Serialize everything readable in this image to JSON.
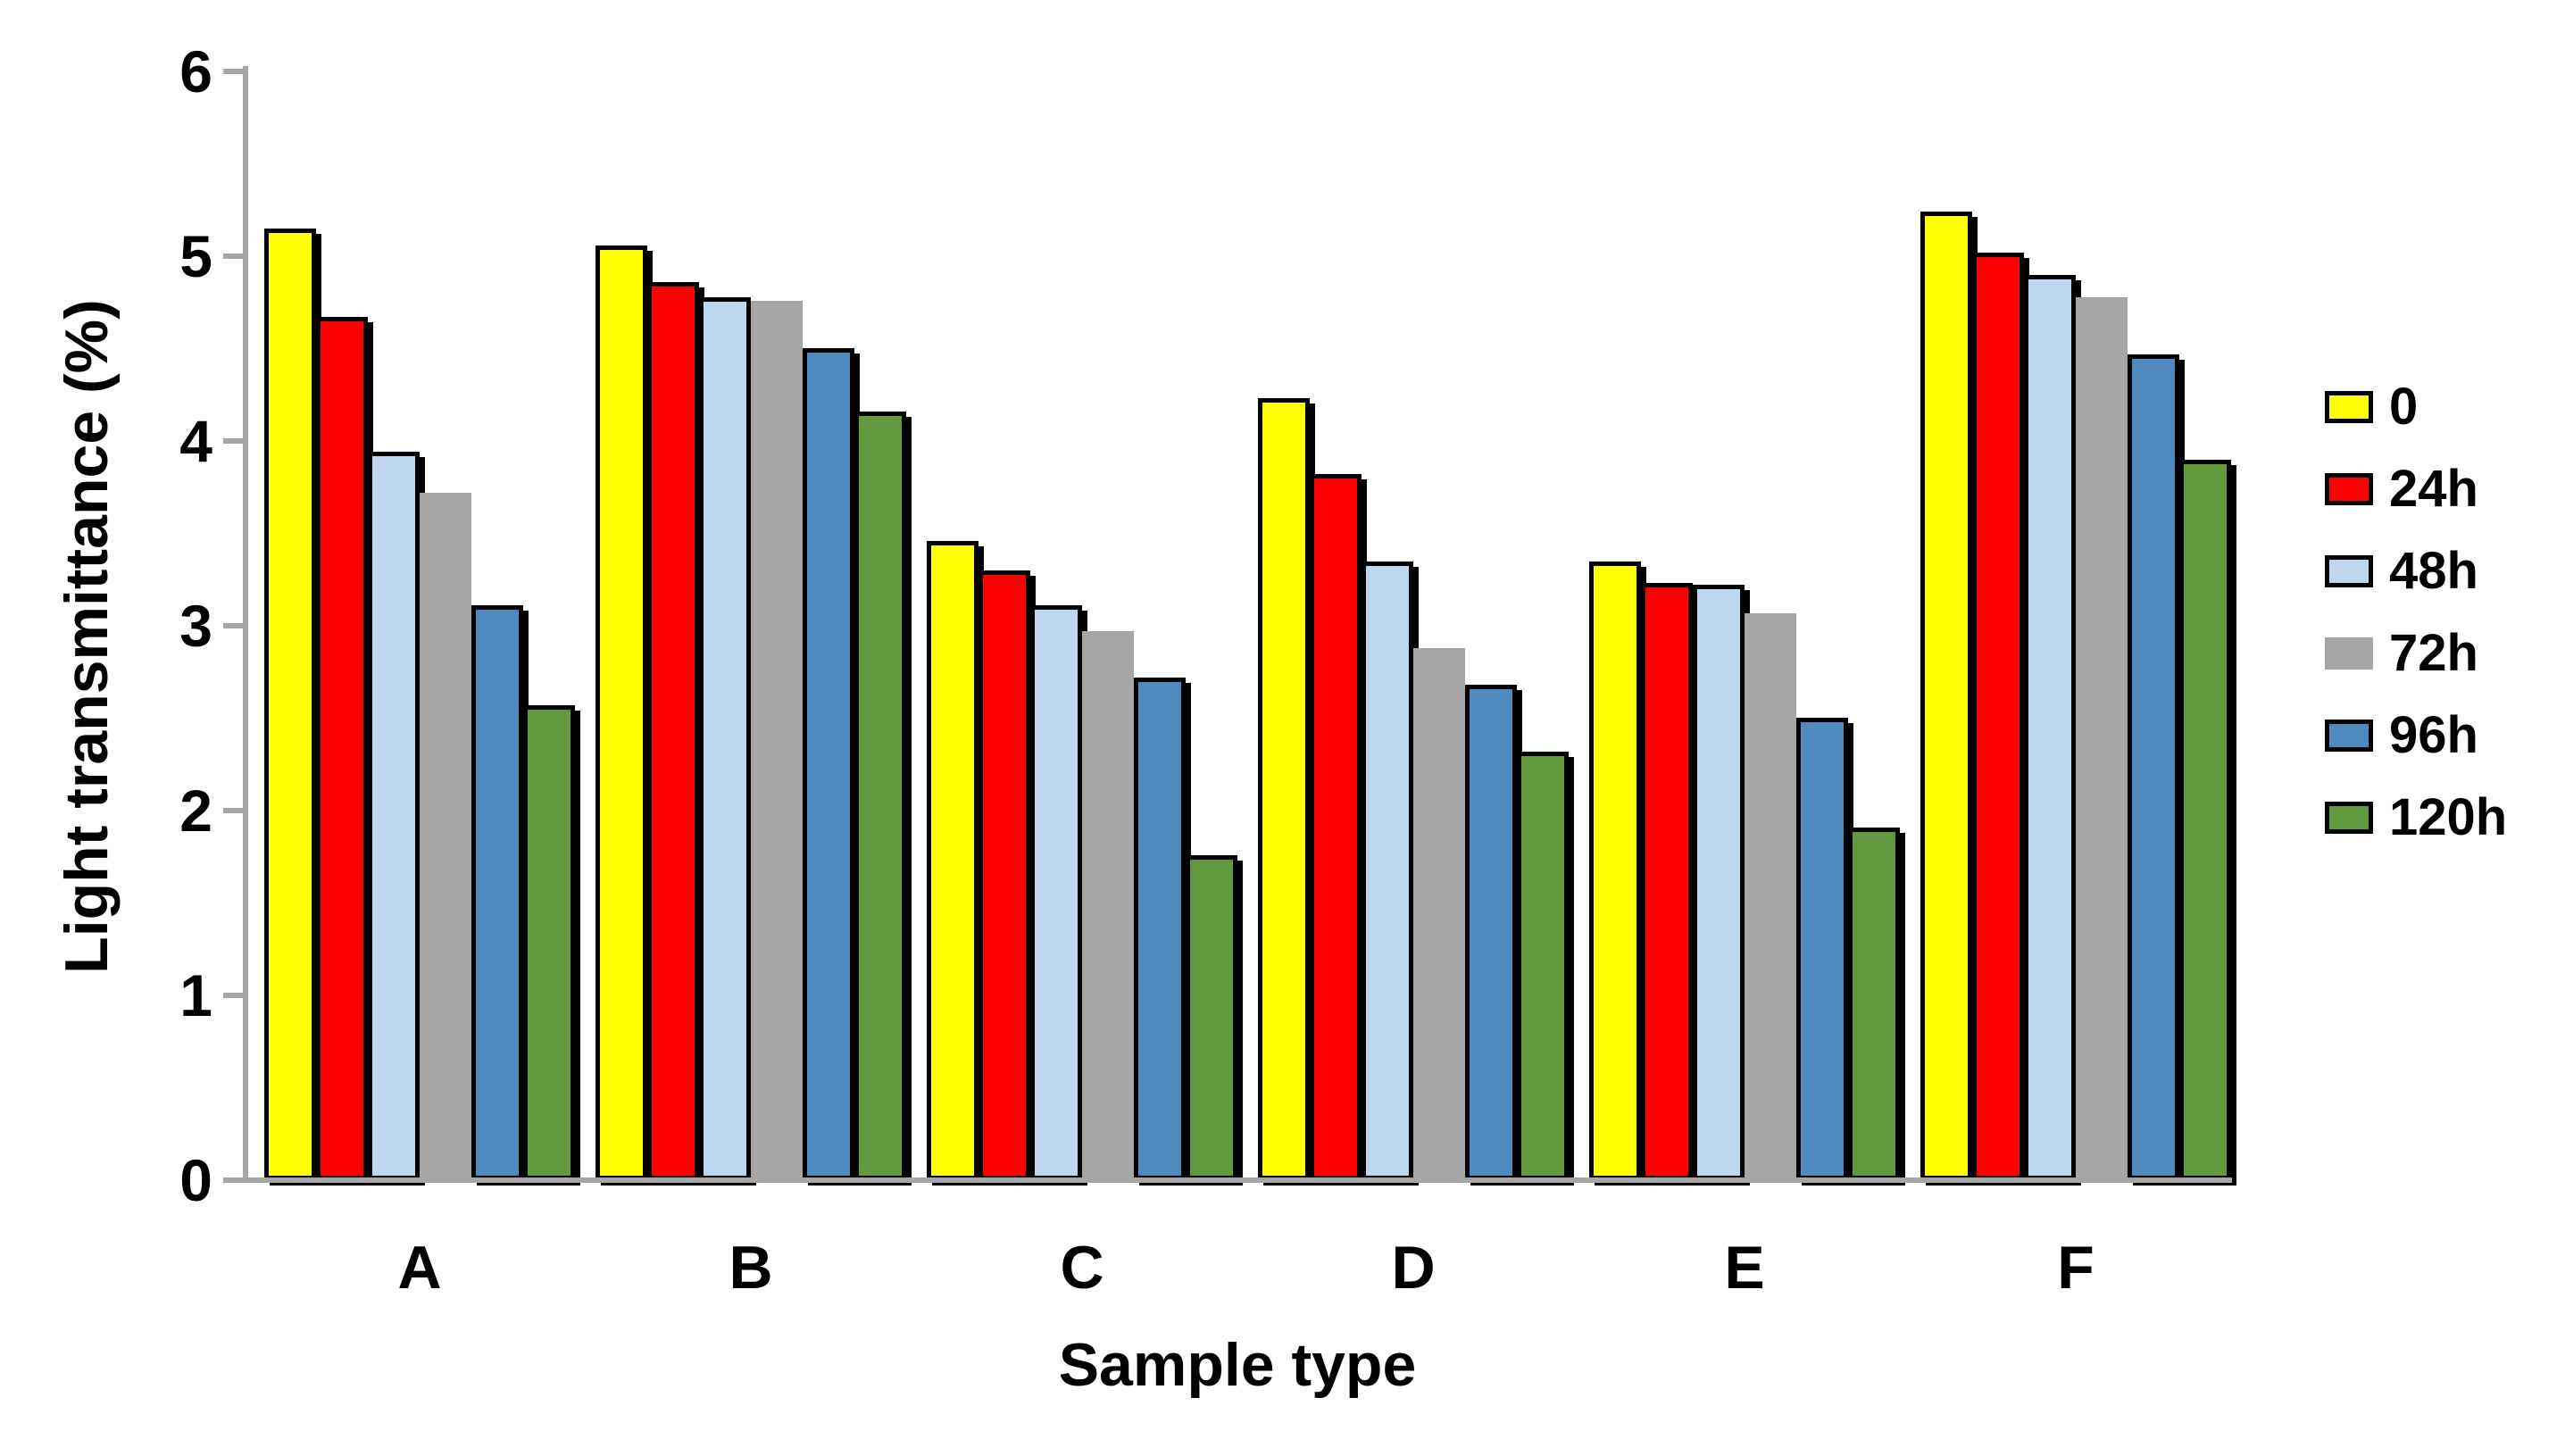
{
  "chart_data": {
    "type": "bar",
    "title": "",
    "xlabel": "Sample type",
    "ylabel": "Light transmittance (%)",
    "ylim": [
      0,
      6
    ],
    "yticks": [
      0,
      1,
      2,
      3,
      4,
      5,
      6
    ],
    "grid": false,
    "legend_position": "right",
    "categories": [
      "A",
      "B",
      "C",
      "D",
      "E",
      "F"
    ],
    "series": [
      {
        "name": "0",
        "color": "#FFFF00",
        "outlined": true,
        "values": [
          5.15,
          5.06,
          3.46,
          4.23,
          3.35,
          5.24
        ]
      },
      {
        "name": "24h",
        "color": "#FF0000",
        "outlined": true,
        "values": [
          4.67,
          4.86,
          3.3,
          3.82,
          3.23,
          5.02
        ]
      },
      {
        "name": "48h",
        "color": "#BDD7EE",
        "outlined": true,
        "values": [
          3.94,
          4.78,
          3.11,
          3.35,
          3.22,
          4.9
        ]
      },
      {
        "name": "72h",
        "color": "#A6A6A6",
        "outlined": false,
        "values": [
          3.72,
          4.76,
          2.97,
          2.88,
          3.07,
          4.78
        ]
      },
      {
        "name": "96h",
        "color": "#4F8ABE",
        "outlined": true,
        "values": [
          3.11,
          4.5,
          2.72,
          2.68,
          2.5,
          4.47
        ]
      },
      {
        "name": "120h",
        "color": "#61993F",
        "outlined": true,
        "values": [
          2.57,
          4.16,
          1.76,
          2.32,
          1.91,
          3.9
        ]
      }
    ],
    "colors": {
      "axis": "#A6A6A6",
      "outline": "#000000",
      "text": "#000000",
      "background": "#FFFFFF"
    }
  }
}
